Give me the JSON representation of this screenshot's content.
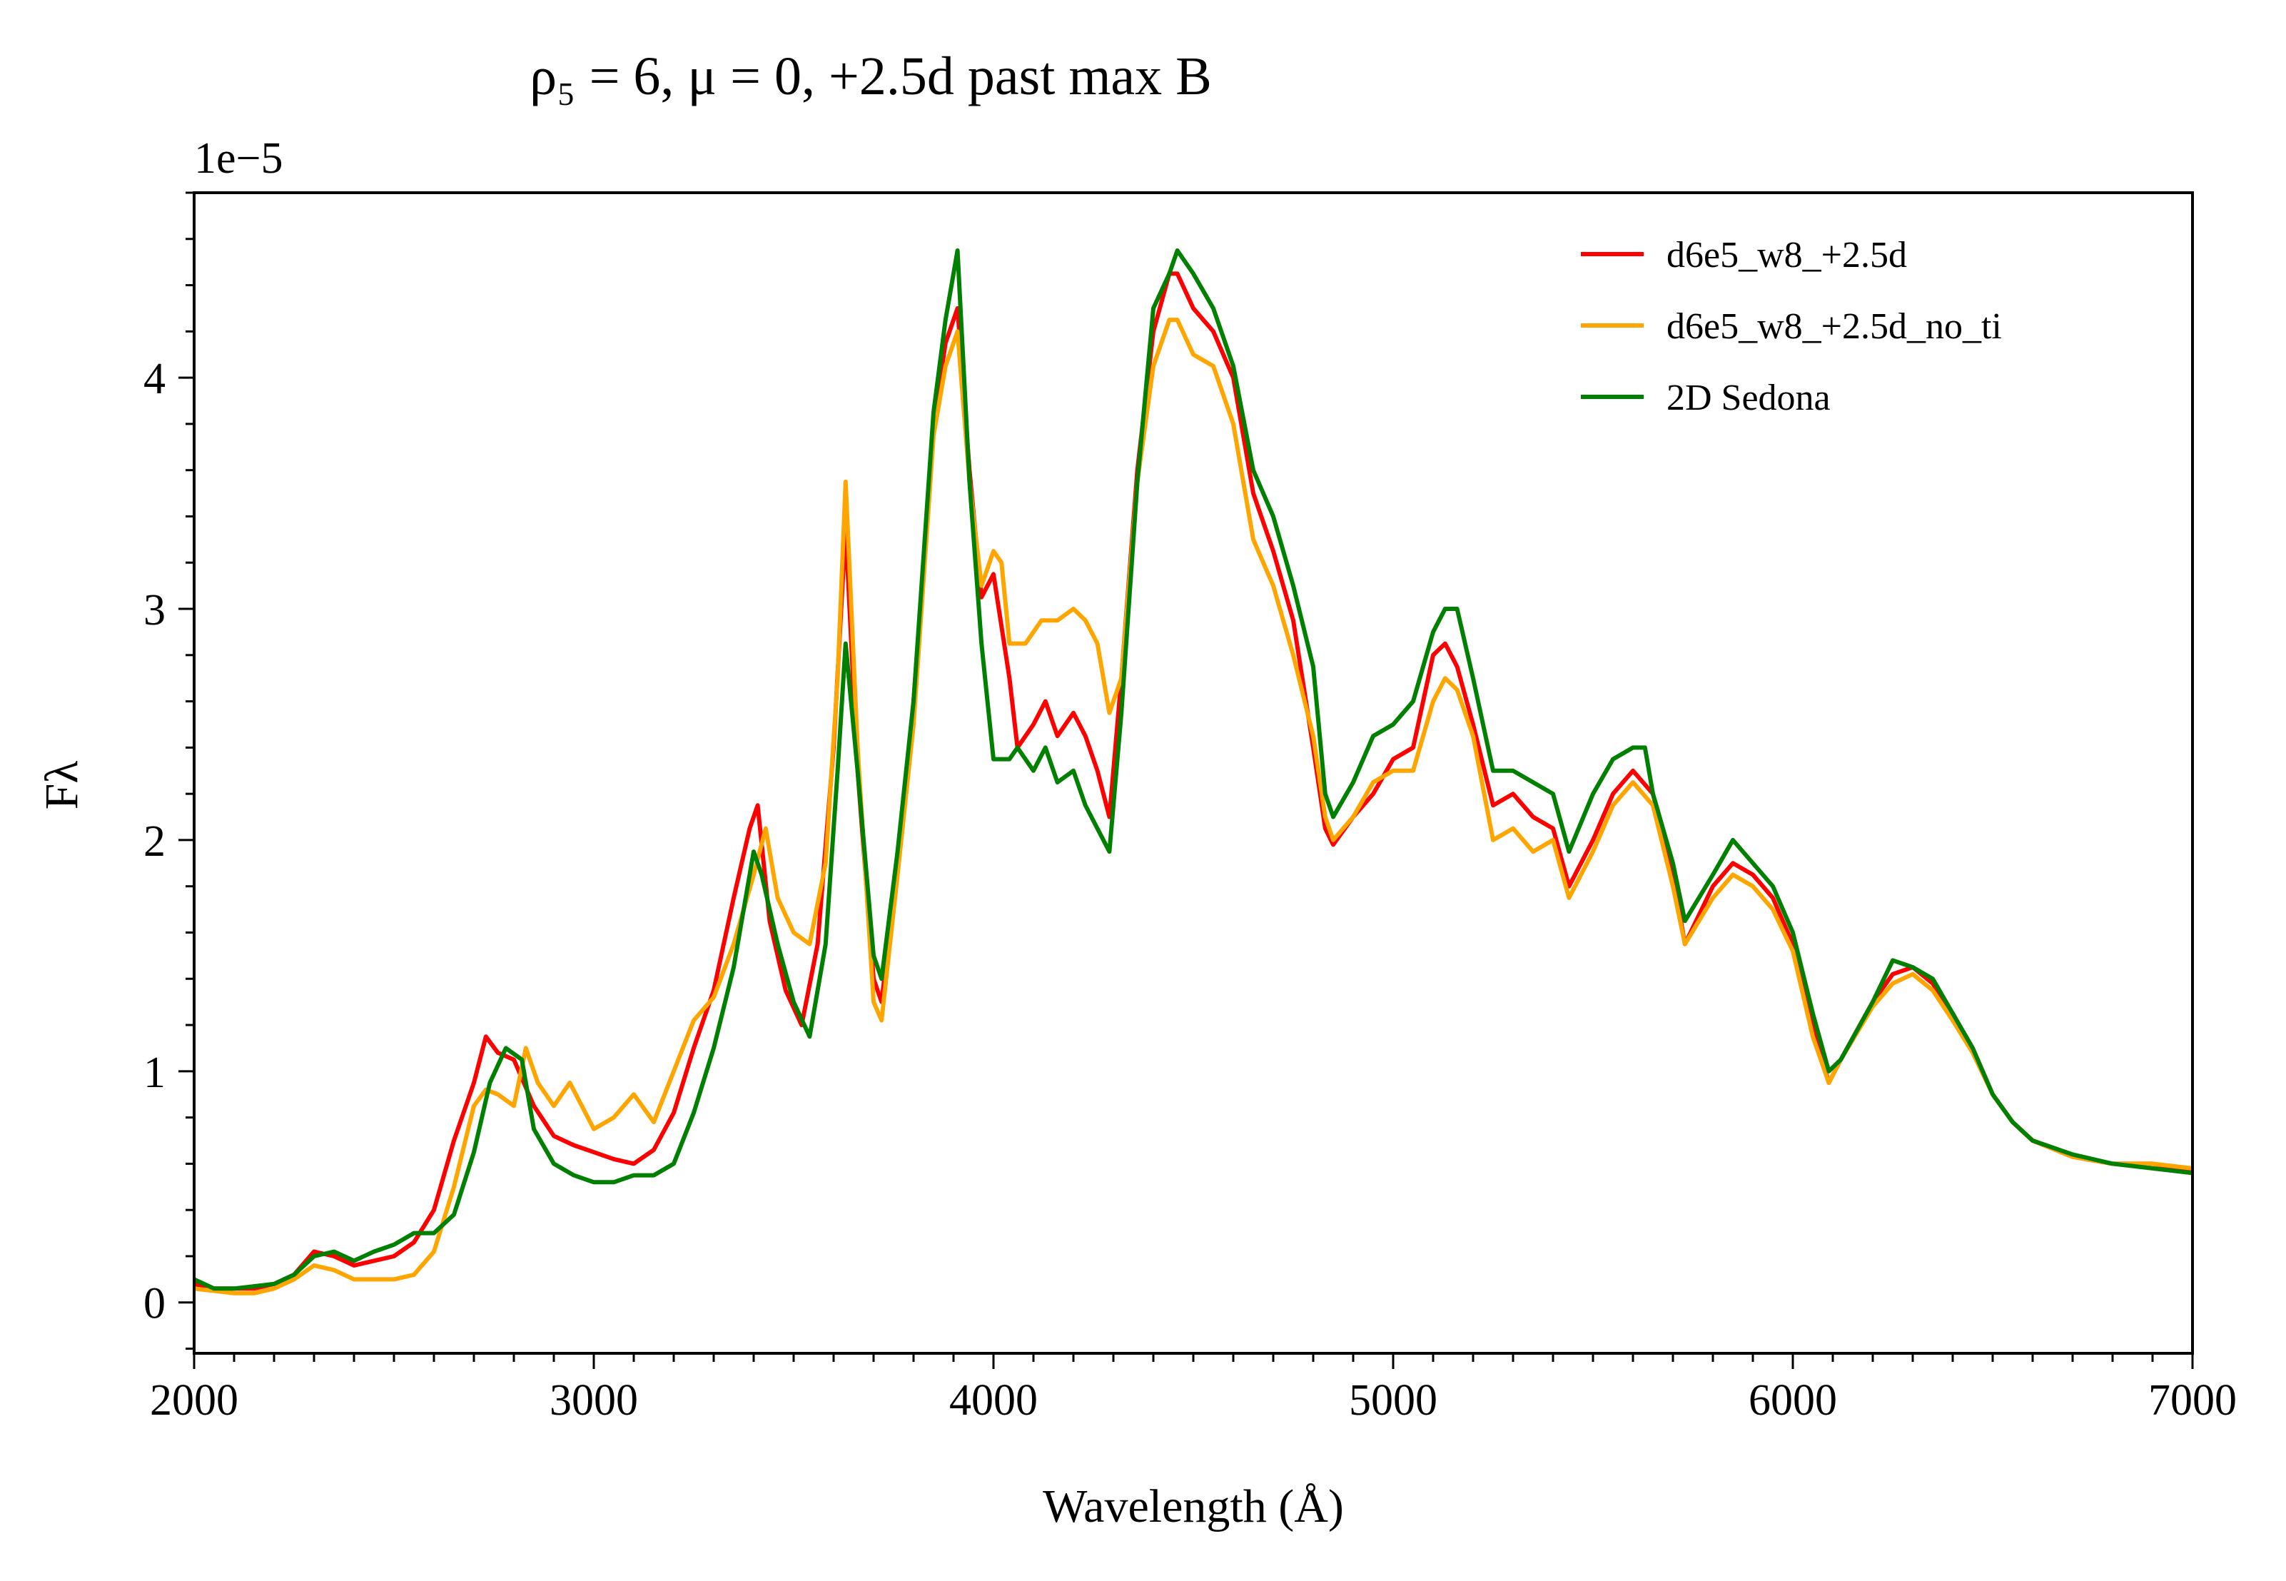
{
  "chart_data": {
    "type": "line",
    "title": "ρ₅ = 6, μ = 0, +2.5d past max B",
    "xlabel": "Wavelength (Å)",
    "ylabel": "Fλ",
    "y_offset_text": "1e−5",
    "xlim": [
      2000,
      7000
    ],
    "ylim": [
      -0.22,
      4.8
    ],
    "x_ticks": [
      2000,
      3000,
      4000,
      5000,
      6000,
      7000
    ],
    "x_tick_labels": [
      "2000",
      "3000",
      "4000",
      "5000",
      "6000",
      "7000"
    ],
    "y_ticks": [
      0,
      1,
      2,
      3,
      4
    ],
    "y_tick_labels": [
      "0",
      "1",
      "2",
      "3",
      "4"
    ],
    "x_minor_step": 100,
    "y_minor_step": 0.2,
    "grid": false,
    "legend_position": "top-right",
    "series": [
      {
        "name": "d6e5_w8_+2.5d",
        "color": "#ff0000",
        "x": [
          2000,
          2050,
          2100,
          2150,
          2200,
          2250,
          2300,
          2350,
          2400,
          2450,
          2500,
          2550,
          2600,
          2650,
          2700,
          2730,
          2760,
          2800,
          2850,
          2900,
          2950,
          3000,
          3050,
          3100,
          3150,
          3200,
          3250,
          3300,
          3350,
          3390,
          3410,
          3440,
          3480,
          3520,
          3560,
          3600,
          3630,
          3660,
          3700,
          3720,
          3760,
          3800,
          3850,
          3880,
          3910,
          3940,
          3970,
          4000,
          4040,
          4060,
          4100,
          4130,
          4160,
          4200,
          4230,
          4260,
          4290,
          4320,
          4360,
          4400,
          4440,
          4460,
          4500,
          4550,
          4600,
          4650,
          4700,
          4750,
          4800,
          4830,
          4850,
          4900,
          4950,
          5000,
          5050,
          5100,
          5130,
          5160,
          5200,
          5250,
          5300,
          5350,
          5400,
          5440,
          5500,
          5550,
          5600,
          5650,
          5700,
          5730,
          5800,
          5850,
          5900,
          5950,
          6000,
          6050,
          6090,
          6120,
          6200,
          6250,
          6300,
          6350,
          6400,
          6450,
          6500,
          6550,
          6600,
          6700,
          6800,
          6900,
          7000
        ],
        "y": [
          0.08,
          0.06,
          0.06,
          0.06,
          0.08,
          0.12,
          0.22,
          0.2,
          0.16,
          0.18,
          0.2,
          0.26,
          0.4,
          0.7,
          0.95,
          1.15,
          1.08,
          1.05,
          0.85,
          0.72,
          0.68,
          0.65,
          0.62,
          0.6,
          0.66,
          0.82,
          1.1,
          1.35,
          1.75,
          2.05,
          2.15,
          1.65,
          1.35,
          1.2,
          1.55,
          2.4,
          3.35,
          2.3,
          1.4,
          1.3,
          1.9,
          2.6,
          3.8,
          4.15,
          4.3,
          3.6,
          3.05,
          3.15,
          2.7,
          2.4,
          2.5,
          2.6,
          2.45,
          2.55,
          2.45,
          2.3,
          2.1,
          2.7,
          3.6,
          4.2,
          4.45,
          4.45,
          4.3,
          4.2,
          4.0,
          3.5,
          3.25,
          2.95,
          2.4,
          2.05,
          1.98,
          2.1,
          2.2,
          2.35,
          2.4,
          2.8,
          2.85,
          2.75,
          2.5,
          2.15,
          2.2,
          2.1,
          2.05,
          1.8,
          2.0,
          2.2,
          2.3,
          2.2,
          1.85,
          1.55,
          1.8,
          1.9,
          1.85,
          1.75,
          1.55,
          1.2,
          0.95,
          1.05,
          1.3,
          1.42,
          1.45,
          1.38,
          1.25,
          1.1,
          0.9,
          0.78,
          0.7,
          0.63,
          0.6,
          0.6,
          0.57
        ]
      },
      {
        "name": "d6e5_w8_+2.5d_no_ti",
        "color": "#ffa500",
        "x": [
          2000,
          2050,
          2100,
          2150,
          2200,
          2250,
          2300,
          2350,
          2400,
          2450,
          2500,
          2550,
          2600,
          2650,
          2700,
          2730,
          2760,
          2800,
          2830,
          2860,
          2900,
          2940,
          2970,
          3000,
          3050,
          3100,
          3150,
          3200,
          3250,
          3300,
          3350,
          3400,
          3430,
          3460,
          3500,
          3540,
          3580,
          3610,
          3630,
          3660,
          3700,
          3720,
          3760,
          3800,
          3850,
          3880,
          3910,
          3940,
          3970,
          4000,
          4020,
          4040,
          4080,
          4120,
          4160,
          4200,
          4230,
          4260,
          4290,
          4320,
          4360,
          4400,
          4440,
          4460,
          4500,
          4550,
          4600,
          4650,
          4700,
          4750,
          4800,
          4830,
          4850,
          4900,
          4950,
          5000,
          5050,
          5100,
          5130,
          5160,
          5200,
          5250,
          5300,
          5350,
          5400,
          5440,
          5500,
          5550,
          5600,
          5650,
          5700,
          5730,
          5800,
          5850,
          5900,
          5950,
          6000,
          6050,
          6090,
          6120,
          6200,
          6250,
          6300,
          6350,
          6400,
          6450,
          6500,
          6550,
          6600,
          6700,
          6800,
          6900,
          7000
        ],
        "y": [
          0.06,
          0.05,
          0.04,
          0.04,
          0.06,
          0.1,
          0.16,
          0.14,
          0.1,
          0.1,
          0.1,
          0.12,
          0.22,
          0.5,
          0.85,
          0.92,
          0.9,
          0.85,
          1.1,
          0.95,
          0.85,
          0.95,
          0.85,
          0.75,
          0.8,
          0.9,
          0.78,
          1.0,
          1.22,
          1.32,
          1.55,
          1.85,
          2.05,
          1.75,
          1.6,
          1.55,
          1.9,
          2.7,
          3.55,
          2.4,
          1.3,
          1.22,
          1.85,
          2.5,
          3.75,
          4.05,
          4.2,
          3.55,
          3.1,
          3.25,
          3.2,
          2.85,
          2.85,
          2.95,
          2.95,
          3.0,
          2.95,
          2.85,
          2.55,
          2.7,
          3.55,
          4.05,
          4.25,
          4.25,
          4.1,
          4.05,
          3.8,
          3.3,
          3.1,
          2.8,
          2.45,
          2.1,
          2.0,
          2.1,
          2.25,
          2.3,
          2.3,
          2.6,
          2.7,
          2.65,
          2.45,
          2.0,
          2.05,
          1.95,
          2.0,
          1.75,
          1.95,
          2.15,
          2.25,
          2.15,
          1.8,
          1.55,
          1.75,
          1.85,
          1.8,
          1.7,
          1.52,
          1.15,
          0.95,
          1.05,
          1.28,
          1.38,
          1.42,
          1.35,
          1.22,
          1.08,
          0.9,
          0.78,
          0.7,
          0.63,
          0.6,
          0.6,
          0.58
        ]
      },
      {
        "name": "2D Sedona",
        "color": "#008000",
        "x": [
          2000,
          2050,
          2100,
          2150,
          2200,
          2250,
          2300,
          2350,
          2400,
          2450,
          2500,
          2550,
          2600,
          2650,
          2700,
          2740,
          2780,
          2820,
          2850,
          2900,
          2950,
          3000,
          3050,
          3100,
          3150,
          3200,
          3250,
          3300,
          3350,
          3380,
          3400,
          3420,
          3460,
          3500,
          3540,
          3580,
          3610,
          3630,
          3660,
          3700,
          3720,
          3760,
          3800,
          3850,
          3880,
          3910,
          3940,
          3970,
          4000,
          4040,
          4060,
          4100,
          4130,
          4160,
          4200,
          4230,
          4260,
          4290,
          4320,
          4360,
          4400,
          4440,
          4460,
          4500,
          4550,
          4600,
          4650,
          4700,
          4750,
          4800,
          4830,
          4850,
          4900,
          4950,
          5000,
          5050,
          5100,
          5130,
          5160,
          5200,
          5250,
          5300,
          5350,
          5400,
          5440,
          5500,
          5550,
          5600,
          5630,
          5650,
          5700,
          5730,
          5800,
          5850,
          5900,
          5950,
          6000,
          6050,
          6090,
          6120,
          6200,
          6250,
          6300,
          6350,
          6400,
          6450,
          6500,
          6550,
          6600,
          6700,
          6800,
          6900,
          7000
        ],
        "y": [
          0.1,
          0.06,
          0.06,
          0.07,
          0.08,
          0.12,
          0.2,
          0.22,
          0.18,
          0.22,
          0.25,
          0.3,
          0.3,
          0.38,
          0.65,
          0.95,
          1.1,
          1.05,
          0.75,
          0.6,
          0.55,
          0.52,
          0.52,
          0.55,
          0.55,
          0.6,
          0.82,
          1.1,
          1.45,
          1.75,
          1.95,
          1.85,
          1.55,
          1.3,
          1.15,
          1.55,
          2.3,
          2.85,
          2.3,
          1.5,
          1.4,
          1.95,
          2.6,
          3.85,
          4.25,
          4.55,
          3.55,
          2.85,
          2.35,
          2.35,
          2.4,
          2.3,
          2.4,
          2.25,
          2.3,
          2.15,
          2.05,
          1.95,
          2.55,
          3.55,
          4.3,
          4.45,
          4.55,
          4.45,
          4.3,
          4.05,
          3.6,
          3.4,
          3.1,
          2.75,
          2.2,
          2.1,
          2.25,
          2.45,
          2.5,
          2.6,
          2.9,
          3.0,
          3.0,
          2.7,
          2.3,
          2.3,
          2.25,
          2.2,
          1.95,
          2.2,
          2.35,
          2.4,
          2.4,
          2.2,
          1.9,
          1.65,
          1.85,
          2.0,
          1.9,
          1.8,
          1.6,
          1.25,
          1.0,
          1.05,
          1.3,
          1.48,
          1.45,
          1.4,
          1.25,
          1.1,
          0.9,
          0.78,
          0.7,
          0.64,
          0.6,
          0.58,
          0.56
        ]
      }
    ]
  }
}
